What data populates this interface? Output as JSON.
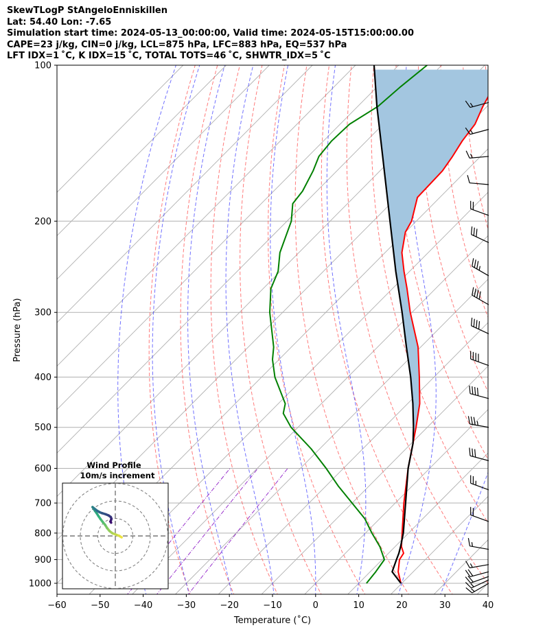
{
  "header": {
    "line1": "SkewTLogP StAngeloEnniskillen",
    "line2": "Lat: 54.40   Lon: -7.65",
    "line3": "Simulation start time: 2024-05-13_00:00:00, Valid time: 2024-05-15T15:00:00.00",
    "line4": "CAPE=23 j/kg, CIN=0 j/kg, LCL=875 hPa, LFC=883 hPa, EQ=537 hPa",
    "line5": "LFT IDX=1 ˚C, K IDX=15 ˚C, TOTAL TOTS=46 ˚C, SHWTR_IDX=5 ˚C"
  },
  "colors": {
    "temperature": "#ff0000",
    "dewpoint": "#008000",
    "parcel": "#000000",
    "cape_fill": "#a3c6e0",
    "dry_adiabat": "#ff4d4d",
    "moist_adiabat": "#3333ff",
    "mixing_ratio": "#9932cc",
    "isotherm": "#b0b0b0",
    "hodo_start": "#3b0f6f",
    "hodo_end": "#f0e440"
  },
  "chart_data": {
    "type": "skewt",
    "xlabel": "Temperature (˚C)",
    "ylabel": "Pressure (hPa)",
    "xlim": [
      -60,
      40
    ],
    "ylim": [
      1050,
      100
    ],
    "x_ticks": [
      "−60",
      "−50",
      "−40",
      "−30",
      "−20",
      "−10",
      "0",
      "10",
      "20",
      "30",
      "40"
    ],
    "y_ticks": [
      "1000",
      "900",
      "800",
      "700",
      "600",
      "500",
      "400",
      "300",
      "200",
      "100"
    ],
    "temperature": {
      "p": [
        1000,
        950,
        900,
        875,
        850,
        800,
        700,
        600,
        537,
        500,
        450,
        400,
        350,
        300,
        270,
        250,
        230,
        210,
        200,
        180,
        160,
        150,
        140,
        130,
        120,
        110,
        100
      ],
      "t": [
        19.8,
        16.5,
        14,
        13.5,
        11.5,
        8.5,
        2.0,
        -5.0,
        -9.6,
        -12.6,
        -17.2,
        -23.4,
        -30.6,
        -40.4,
        -46.6,
        -51.3,
        -56.1,
        -60.0,
        -61.1,
        -65.2,
        -65.5,
        -66.5,
        -67.8,
        -68.7,
        -71.0,
        -73.0,
        -77.0
      ]
    },
    "dewpoint": {
      "p": [
        1000,
        950,
        900,
        850,
        800,
        750,
        700,
        650,
        600,
        550,
        500,
        470,
        450,
        400,
        370,
        350,
        300,
        270,
        250,
        230,
        200,
        185,
        175,
        160,
        150,
        140,
        130,
        120,
        110,
        100
      ],
      "td": [
        11.8,
        11.3,
        10.5,
        6.5,
        1.5,
        -3.5,
        -10.0,
        -17.0,
        -24.0,
        -32.0,
        -41.6,
        -46.6,
        -48.4,
        -56.9,
        -61.5,
        -64.1,
        -73.0,
        -78.2,
        -80.5,
        -84.4,
        -89.0,
        -92.7,
        -93.3,
        -95.5,
        -97.5,
        -98.1,
        -97.8,
        -95.3,
        -94.6,
        -93.4
      ]
    },
    "parcel": {
      "p": [
        1000,
        950,
        900,
        875,
        850,
        800,
        700,
        600,
        537,
        500,
        450,
        400,
        350,
        300,
        250,
        200,
        150,
        120,
        100
      ],
      "t": [
        19.8,
        15.1,
        13.3,
        12.4,
        11.3,
        8.8,
        2.4,
        -5.0,
        -9.6,
        -13.2,
        -18.8,
        -25.4,
        -33.3,
        -42.3,
        -53.2,
        -66.1,
        -82.7,
        -95.6,
        -105.7
      ]
    },
    "wind_barbs": [
      {
        "p": 1000,
        "speed_kt": 15,
        "dir": 240
      },
      {
        "p": 985,
        "speed_kt": 15,
        "dir": 245
      },
      {
        "p": 970,
        "speed_kt": 20,
        "dir": 250
      },
      {
        "p": 950,
        "speed_kt": 20,
        "dir": 255
      },
      {
        "p": 920,
        "speed_kt": 15,
        "dir": 260
      },
      {
        "p": 860,
        "speed_kt": 15,
        "dir": 280
      },
      {
        "p": 760,
        "speed_kt": 20,
        "dir": 290
      },
      {
        "p": 660,
        "speed_kt": 25,
        "dir": 290
      },
      {
        "p": 580,
        "speed_kt": 30,
        "dir": 285
      },
      {
        "p": 500,
        "speed_kt": 35,
        "dir": 280
      },
      {
        "p": 440,
        "speed_kt": 40,
        "dir": 285
      },
      {
        "p": 380,
        "speed_kt": 40,
        "dir": 290
      },
      {
        "p": 330,
        "speed_kt": 40,
        "dir": 295
      },
      {
        "p": 290,
        "speed_kt": 40,
        "dir": 300
      },
      {
        "p": 255,
        "speed_kt": 35,
        "dir": 300
      },
      {
        "p": 220,
        "speed_kt": 30,
        "dir": 295
      },
      {
        "p": 195,
        "speed_kt": 20,
        "dir": 290
      },
      {
        "p": 170,
        "speed_kt": 10,
        "dir": 275
      },
      {
        "p": 150,
        "speed_kt": 15,
        "dir": 265
      },
      {
        "p": 133,
        "speed_kt": 15,
        "dir": 255
      },
      {
        "p": 118,
        "speed_kt": 15,
        "dir": 255
      }
    ],
    "hodograph": {
      "title_line1": "Wind Profile",
      "title_line2": "10m/s increment",
      "ring_increment_ms": 10,
      "rings": 3,
      "u": [
        3.6,
        2.2,
        0.5,
        -1.6,
        -3.3,
        -4.7,
        -5.8,
        -7.2,
        -8.5,
        -9.6,
        -10.6,
        -11.6,
        -12.3,
        -12.8,
        -13.0,
        -12.4,
        -11.3,
        -10.2,
        -9.0,
        -7.5,
        -5.5,
        -3.8,
        -2.6,
        -2.2,
        -2.5,
        -2.8,
        -2.4
      ],
      "v": [
        -0.8,
        0.1,
        0.7,
        1.5,
        2.8,
        4.5,
        6.3,
        8.0,
        9.7,
        11.3,
        12.9,
        14.3,
        15.4,
        16.2,
        16.5,
        16.0,
        15.1,
        14.3,
        13.6,
        13.0,
        12.4,
        11.7,
        10.8,
        9.8,
        8.9,
        8.2,
        7.6
      ]
    }
  }
}
